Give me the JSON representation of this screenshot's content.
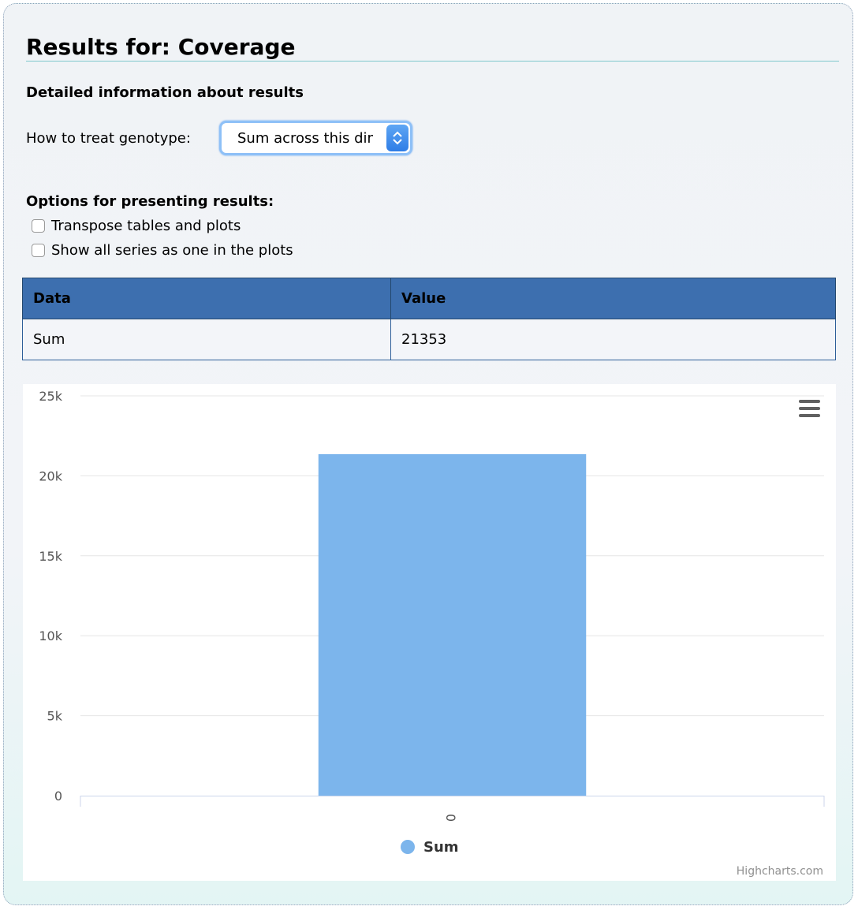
{
  "page": {
    "title": "Results for: Coverage",
    "subtitle": "Detailed information about results"
  },
  "genotype": {
    "label": "How to treat genotype:",
    "selected": "Sum across this dimension"
  },
  "options": {
    "heading": "Options for presenting results:",
    "transpose_label": "Transpose tables and plots",
    "one_series_label": "Show all series as one in the plots"
  },
  "table": {
    "headers": [
      "Data",
      "Value"
    ],
    "rows": [
      [
        "Sum",
        "21353"
      ]
    ]
  },
  "colors": {
    "bar": "#7cb5ec",
    "table_header": "#3d6faf",
    "accent": "#8ec0f7"
  },
  "icons": {
    "chart_menu": "hamburger-menu-icon",
    "select_arrow": "up-down-chevron-icon"
  },
  "chart_data": {
    "type": "bar",
    "categories": [
      "0"
    ],
    "series": [
      {
        "name": "Sum",
        "values": [
          21353
        ]
      }
    ],
    "ylim": [
      0,
      25000
    ],
    "yticks": [
      0,
      5000,
      10000,
      15000,
      20000,
      25000
    ],
    "ytick_labels": [
      "0",
      "5k",
      "10k",
      "15k",
      "20k",
      "25k"
    ],
    "grid": true,
    "legend": "bottom-center",
    "credit": "Highcharts.com"
  }
}
